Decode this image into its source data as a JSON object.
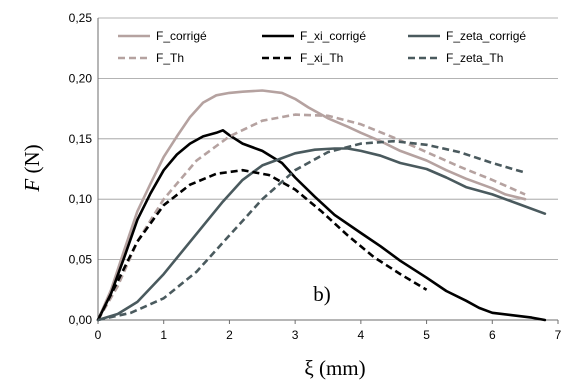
{
  "chart_data": {
    "type": "line",
    "xlabel": "ξ (mm)",
    "ylabel": "F (N)",
    "ylabel_symbol": "F",
    "ylabel_unit": "(N)",
    "xlim": [
      0,
      7
    ],
    "ylim": [
      0,
      0.25
    ],
    "x_ticks": [
      "0",
      "1",
      "2",
      "3",
      "4",
      "5",
      "6",
      "7"
    ],
    "y_ticks": [
      "0,00",
      "0,05",
      "0,10",
      "0,15",
      "0,20",
      "0,25"
    ],
    "grid": "horizontal",
    "legend_position": "top",
    "annotation": "b)",
    "series": [
      {
        "name": "F_corrigé",
        "style": "solid",
        "color": "#b5a2a0",
        "x": [
          0,
          0.2,
          0.4,
          0.6,
          0.8,
          1.0,
          1.2,
          1.4,
          1.6,
          1.8,
          2.0,
          2.2,
          2.5,
          2.8,
          3.0,
          3.2,
          3.5,
          3.8,
          4.0,
          4.3,
          4.6,
          5.0,
          5.3,
          5.6,
          6.0,
          6.2,
          6.5
        ],
        "y": [
          0,
          0.025,
          0.058,
          0.09,
          0.113,
          0.135,
          0.152,
          0.168,
          0.18,
          0.186,
          0.188,
          0.189,
          0.19,
          0.188,
          0.183,
          0.176,
          0.167,
          0.16,
          0.155,
          0.148,
          0.14,
          0.132,
          0.124,
          0.117,
          0.109,
          0.104,
          0.1
        ]
      },
      {
        "name": "F_xi_corrigé",
        "style": "solid",
        "color": "#000000",
        "x": [
          0,
          0.2,
          0.4,
          0.6,
          0.8,
          1.0,
          1.2,
          1.4,
          1.6,
          1.8,
          1.9,
          2.0,
          2.2,
          2.5,
          2.8,
          3.0,
          3.3,
          3.6,
          4.0,
          4.3,
          4.6,
          5.0,
          5.3,
          5.6,
          5.8,
          6.0,
          6.3,
          6.6,
          6.8
        ],
        "y": [
          0,
          0.022,
          0.052,
          0.083,
          0.105,
          0.124,
          0.137,
          0.146,
          0.152,
          0.155,
          0.157,
          0.153,
          0.146,
          0.14,
          0.13,
          0.118,
          0.102,
          0.087,
          0.072,
          0.061,
          0.049,
          0.035,
          0.024,
          0.016,
          0.01,
          0.006,
          0.004,
          0.002,
          0
        ]
      },
      {
        "name": "F_zeta_corrigé",
        "style": "solid",
        "color": "#4a5a5e",
        "x": [
          0,
          0.3,
          0.6,
          1.0,
          1.3,
          1.6,
          1.9,
          2.2,
          2.5,
          2.8,
          3.0,
          3.3,
          3.6,
          3.8,
          4.0,
          4.3,
          4.6,
          5.0,
          5.3,
          5.6,
          6.0,
          6.4,
          6.8
        ],
        "y": [
          0,
          0.005,
          0.015,
          0.038,
          0.058,
          0.078,
          0.098,
          0.116,
          0.128,
          0.134,
          0.138,
          0.141,
          0.142,
          0.142,
          0.14,
          0.136,
          0.13,
          0.125,
          0.118,
          0.11,
          0.104,
          0.096,
          0.088
        ]
      },
      {
        "name": "F_Th",
        "style": "dashed",
        "color": "#b5a2a0",
        "x": [
          0,
          0.3,
          0.6,
          1.0,
          1.5,
          2.0,
          2.5,
          3.0,
          3.5,
          4.0,
          4.5,
          5.0,
          5.5,
          6.0,
          6.5
        ],
        "y": [
          0,
          0.028,
          0.065,
          0.1,
          0.132,
          0.152,
          0.165,
          0.17,
          0.169,
          0.162,
          0.151,
          0.139,
          0.127,
          0.116,
          0.104
        ]
      },
      {
        "name": "F_xi_Th",
        "style": "dashed",
        "color": "#000000",
        "x": [
          0,
          0.3,
          0.6,
          1.0,
          1.4,
          1.8,
          2.2,
          2.6,
          3.0,
          3.4,
          3.8,
          4.2,
          4.6,
          5.0
        ],
        "y": [
          0,
          0.032,
          0.065,
          0.095,
          0.112,
          0.121,
          0.124,
          0.12,
          0.108,
          0.09,
          0.07,
          0.052,
          0.038,
          0.025
        ]
      },
      {
        "name": "F_zeta_Th",
        "style": "dashed",
        "color": "#4a5a5e",
        "x": [
          0,
          0.5,
          1.0,
          1.5,
          2.0,
          2.5,
          3.0,
          3.5,
          4.0,
          4.5,
          5.0,
          5.5,
          6.0,
          6.5
        ],
        "y": [
          0,
          0.006,
          0.018,
          0.04,
          0.07,
          0.1,
          0.124,
          0.139,
          0.146,
          0.148,
          0.145,
          0.139,
          0.13,
          0.122
        ]
      }
    ]
  }
}
